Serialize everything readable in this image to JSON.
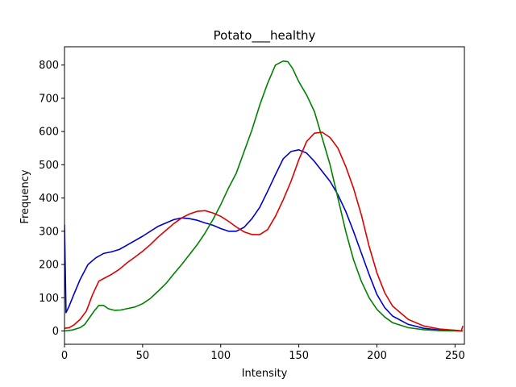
{
  "chart_data": {
    "type": "line",
    "title": "Potato___healthy",
    "xlabel": "Intensity",
    "ylabel": "Frequency",
    "xlim": [
      0,
      256
    ],
    "ylim": [
      -40,
      855
    ],
    "xticks": [
      0,
      50,
      100,
      150,
      200,
      250
    ],
    "yticks": [
      0,
      100,
      200,
      300,
      400,
      500,
      600,
      700,
      800
    ],
    "grid": false,
    "legend": "none",
    "series": [
      {
        "color": "#0000cc",
        "x": [
          0,
          1,
          3,
          6,
          10,
          15,
          20,
          25,
          30,
          35,
          40,
          50,
          60,
          70,
          75,
          80,
          85,
          90,
          95,
          100,
          105,
          110,
          115,
          120,
          125,
          130,
          135,
          140,
          145,
          150,
          155,
          160,
          165,
          170,
          175,
          180,
          185,
          190,
          195,
          200,
          205,
          210,
          220,
          230,
          240,
          250,
          255
        ],
        "y": [
          320,
          55,
          75,
          110,
          155,
          200,
          220,
          233,
          238,
          245,
          258,
          285,
          315,
          335,
          340,
          338,
          333,
          325,
          318,
          308,
          300,
          300,
          312,
          338,
          372,
          420,
          470,
          518,
          540,
          545,
          535,
          510,
          480,
          450,
          410,
          360,
          300,
          235,
          170,
          110,
          70,
          45,
          20,
          8,
          3,
          2,
          0
        ]
      },
      {
        "color": "#008000",
        "x": [
          0,
          5,
          10,
          13,
          16,
          19,
          22,
          25,
          28,
          32,
          36,
          40,
          45,
          50,
          55,
          60,
          65,
          70,
          75,
          80,
          85,
          90,
          95,
          100,
          105,
          110,
          115,
          120,
          125,
          130,
          135,
          140,
          143,
          146,
          150,
          155,
          160,
          165,
          170,
          175,
          180,
          185,
          190,
          195,
          200,
          205,
          210,
          220,
          230,
          240,
          250,
          255
        ],
        "y": [
          0,
          3,
          10,
          20,
          40,
          60,
          77,
          77,
          67,
          62,
          63,
          67,
          72,
          82,
          98,
          120,
          143,
          172,
          200,
          230,
          260,
          295,
          335,
          380,
          430,
          475,
          540,
          605,
          680,
          745,
          800,
          812,
          810,
          790,
          750,
          710,
          660,
          580,
          500,
          400,
          300,
          215,
          150,
          100,
          65,
          42,
          25,
          10,
          4,
          1,
          0,
          0
        ]
      },
      {
        "color": "#dd0000",
        "x": [
          0,
          3,
          6,
          10,
          14,
          18,
          22,
          26,
          30,
          35,
          40,
          45,
          50,
          55,
          60,
          65,
          70,
          75,
          80,
          85,
          90,
          95,
          100,
          105,
          110,
          115,
          120,
          125,
          130,
          135,
          140,
          145,
          150,
          155,
          160,
          165,
          170,
          175,
          180,
          185,
          190,
          195,
          200,
          205,
          210,
          220,
          230,
          240,
          250,
          254,
          255
        ],
        "y": [
          8,
          10,
          18,
          35,
          60,
          110,
          150,
          160,
          170,
          185,
          205,
          222,
          240,
          260,
          283,
          303,
          323,
          340,
          352,
          360,
          362,
          355,
          345,
          330,
          313,
          298,
          290,
          290,
          305,
          345,
          395,
          450,
          515,
          570,
          595,
          598,
          582,
          550,
          495,
          430,
          350,
          255,
          175,
          115,
          75,
          35,
          15,
          6,
          2,
          0,
          15
        ]
      }
    ]
  }
}
